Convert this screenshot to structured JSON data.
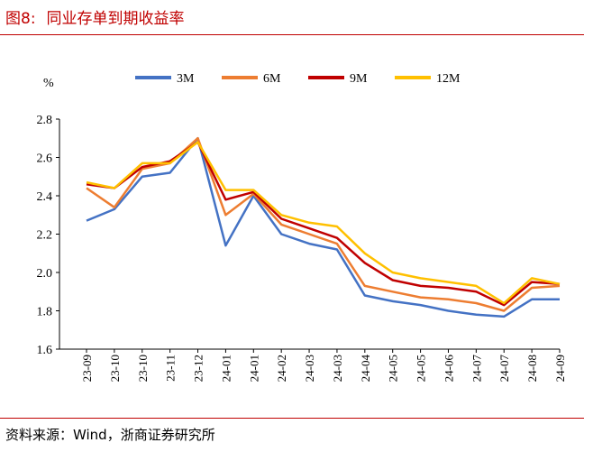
{
  "figure": {
    "number": "图8:",
    "title": "同业存单到期收益率"
  },
  "source": "资料来源：Wind，浙商证券研究所",
  "chart_data": {
    "type": "line",
    "yunit": "%",
    "ylim": [
      1.6,
      2.8
    ],
    "yticks": [
      "1.6",
      "1.8",
      "2.0",
      "2.2",
      "2.4",
      "2.6",
      "2.8"
    ],
    "legend_position": "top-center",
    "categories": [
      "23-09",
      "23-10",
      "23-10",
      "23-11",
      "23-12",
      "24-01",
      "24-01",
      "24-02",
      "24-03",
      "24-03",
      "24-04",
      "24-05",
      "24-05",
      "24-06",
      "24-07",
      "24-07",
      "24-08",
      "24-09"
    ],
    "series": [
      {
        "name": "3M",
        "color": "#4472c4",
        "values": [
          2.27,
          2.33,
          2.5,
          2.52,
          2.7,
          2.14,
          2.4,
          2.2,
          2.15,
          2.12,
          1.88,
          1.85,
          1.83,
          1.8,
          1.78,
          1.77,
          1.86,
          1.86
        ]
      },
      {
        "name": "6M",
        "color": "#ed7d31",
        "values": [
          2.44,
          2.34,
          2.54,
          2.57,
          2.7,
          2.3,
          2.41,
          2.25,
          2.2,
          2.15,
          1.93,
          1.9,
          1.87,
          1.86,
          1.84,
          1.8,
          1.92,
          1.93
        ]
      },
      {
        "name": "9M",
        "color": "#c00000",
        "values": [
          2.46,
          2.44,
          2.55,
          2.58,
          2.68,
          2.38,
          2.42,
          2.28,
          2.23,
          2.18,
          2.05,
          1.96,
          1.93,
          1.92,
          1.9,
          1.83,
          1.95,
          1.94
        ]
      },
      {
        "name": "12M",
        "color": "#ffc000",
        "values": [
          2.47,
          2.44,
          2.57,
          2.57,
          2.68,
          2.43,
          2.43,
          2.3,
          2.26,
          2.24,
          2.1,
          2.0,
          1.97,
          1.95,
          1.93,
          1.84,
          1.97,
          1.94
        ]
      }
    ]
  }
}
